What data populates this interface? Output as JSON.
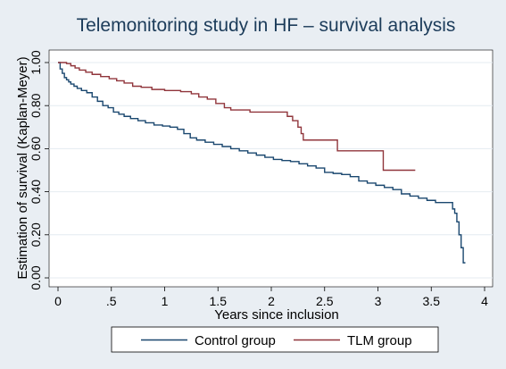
{
  "chart_data": {
    "type": "line",
    "step": true,
    "title": "Telemonitoring study in HF – survival analysis",
    "xlabel": "Years since inclusion",
    "ylabel": "Estimation of survival (Kaplan-Meyer)",
    "xlim": [
      0,
      4
    ],
    "ylim": [
      0,
      1
    ],
    "xticks": [
      0,
      0.5,
      1,
      1.5,
      2,
      2.5,
      3,
      3.5,
      4
    ],
    "xtick_labels": [
      "0",
      ".5",
      "1",
      "1.5",
      "2",
      "2.5",
      "3",
      "3.5",
      "4"
    ],
    "yticks": [
      0,
      0.2,
      0.4,
      0.6,
      0.8,
      1.0
    ],
    "ytick_labels": [
      "0.00",
      "0.20",
      "0.40",
      "0.60",
      "0.80",
      "1.00"
    ],
    "grid": "horizontal",
    "legend_position": "bottom",
    "series": [
      {
        "name": "Control group",
        "color": "#1a476f",
        "x": [
          0,
          0.02,
          0.04,
          0.06,
          0.08,
          0.1,
          0.12,
          0.15,
          0.18,
          0.22,
          0.27,
          0.32,
          0.37,
          0.42,
          0.47,
          0.52,
          0.57,
          0.62,
          0.68,
          0.75,
          0.82,
          0.9,
          0.98,
          1.05,
          1.12,
          1.18,
          1.24,
          1.3,
          1.38,
          1.46,
          1.54,
          1.62,
          1.7,
          1.78,
          1.86,
          1.94,
          2.02,
          2.1,
          2.18,
          2.26,
          2.34,
          2.42,
          2.5,
          2.58,
          2.66,
          2.74,
          2.82,
          2.9,
          2.98,
          3.06,
          3.14,
          3.22,
          3.3,
          3.38,
          3.46,
          3.54,
          3.7,
          3.72,
          3.74,
          3.76,
          3.78,
          3.8,
          3.82
        ],
        "y": [
          1.0,
          0.97,
          0.95,
          0.93,
          0.92,
          0.91,
          0.9,
          0.89,
          0.88,
          0.87,
          0.86,
          0.84,
          0.82,
          0.8,
          0.79,
          0.77,
          0.76,
          0.75,
          0.74,
          0.73,
          0.72,
          0.71,
          0.705,
          0.7,
          0.69,
          0.67,
          0.65,
          0.64,
          0.63,
          0.62,
          0.61,
          0.6,
          0.59,
          0.58,
          0.57,
          0.56,
          0.55,
          0.545,
          0.54,
          0.53,
          0.52,
          0.51,
          0.49,
          0.485,
          0.48,
          0.47,
          0.45,
          0.44,
          0.43,
          0.42,
          0.41,
          0.39,
          0.38,
          0.37,
          0.36,
          0.35,
          0.32,
          0.3,
          0.26,
          0.2,
          0.14,
          0.07,
          0.07
        ]
      },
      {
        "name": "TLM group",
        "color": "#90353b",
        "x": [
          0,
          0.08,
          0.12,
          0.16,
          0.2,
          0.26,
          0.32,
          0.4,
          0.48,
          0.55,
          0.62,
          0.7,
          0.78,
          0.88,
          1.0,
          1.15,
          1.25,
          1.32,
          1.4,
          1.48,
          1.56,
          1.62,
          1.7,
          1.8,
          2.15,
          2.2,
          2.25,
          2.28,
          2.3,
          2.62,
          3.05,
          3.35
        ],
        "y": [
          1.0,
          0.995,
          0.985,
          0.975,
          0.965,
          0.955,
          0.945,
          0.935,
          0.925,
          0.915,
          0.905,
          0.89,
          0.885,
          0.875,
          0.87,
          0.865,
          0.855,
          0.84,
          0.83,
          0.81,
          0.79,
          0.78,
          0.78,
          0.77,
          0.75,
          0.73,
          0.7,
          0.67,
          0.64,
          0.59,
          0.5,
          0.5
        ]
      }
    ]
  }
}
